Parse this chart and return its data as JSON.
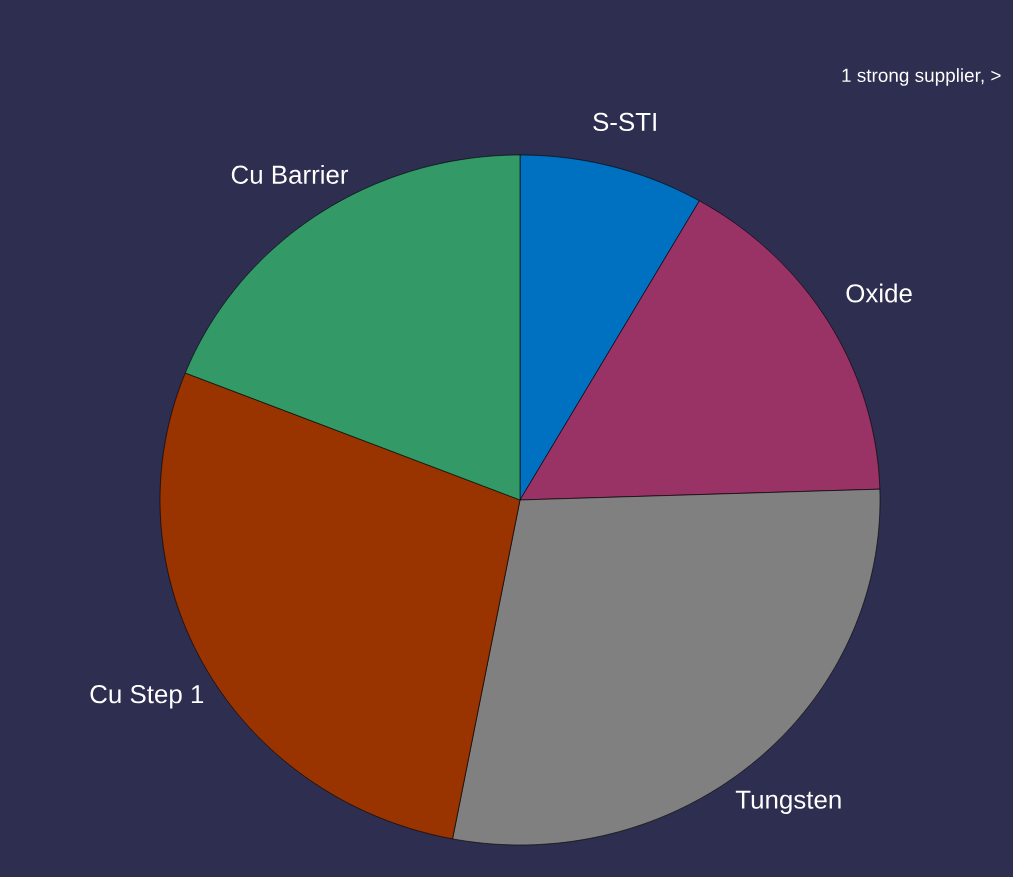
{
  "chart_data": {
    "type": "pie",
    "categories": [
      "S-STI",
      "Oxide",
      "Tungsten",
      "Cu Step 1",
      "Cu Barrier"
    ],
    "values": [
      8.3,
      16.2,
      28.5,
      28.0,
      19.0
    ],
    "colors": [
      "#0070c0",
      "#993366",
      "#808080",
      "#993300",
      "#339966"
    ],
    "annotations": [
      "1 strong supplier, >"
    ]
  }
}
